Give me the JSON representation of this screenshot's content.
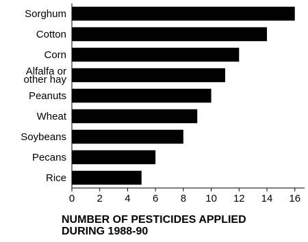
{
  "chart_data": {
    "type": "bar",
    "orientation": "horizontal",
    "categories": [
      "Sorghum",
      "Cotton",
      "Corn",
      "Alfalfa or other hay",
      "Peanuts",
      "Wheat",
      "Soybeans",
      "Pecans",
      "Rice"
    ],
    "category_lines": [
      [
        "Sorghum"
      ],
      [
        "Cotton"
      ],
      [
        "Corn"
      ],
      [
        "Alfalfa or",
        "other hay"
      ],
      [
        "Peanuts"
      ],
      [
        "Wheat"
      ],
      [
        "Soybeans"
      ],
      [
        "Pecans"
      ],
      [
        "Rice"
      ]
    ],
    "values": [
      16,
      14,
      12,
      11,
      10,
      9,
      8,
      6,
      5
    ],
    "xlim": [
      0,
      16.7
    ],
    "xticks": [
      0,
      2,
      4,
      6,
      8,
      10,
      12,
      14,
      16
    ],
    "xlabel_lines": [
      "NUMBER OF PESTICIDES APPLIED",
      "DURING 1988-90"
    ],
    "bar_color": "#000000",
    "grid": false,
    "legend": "none"
  }
}
